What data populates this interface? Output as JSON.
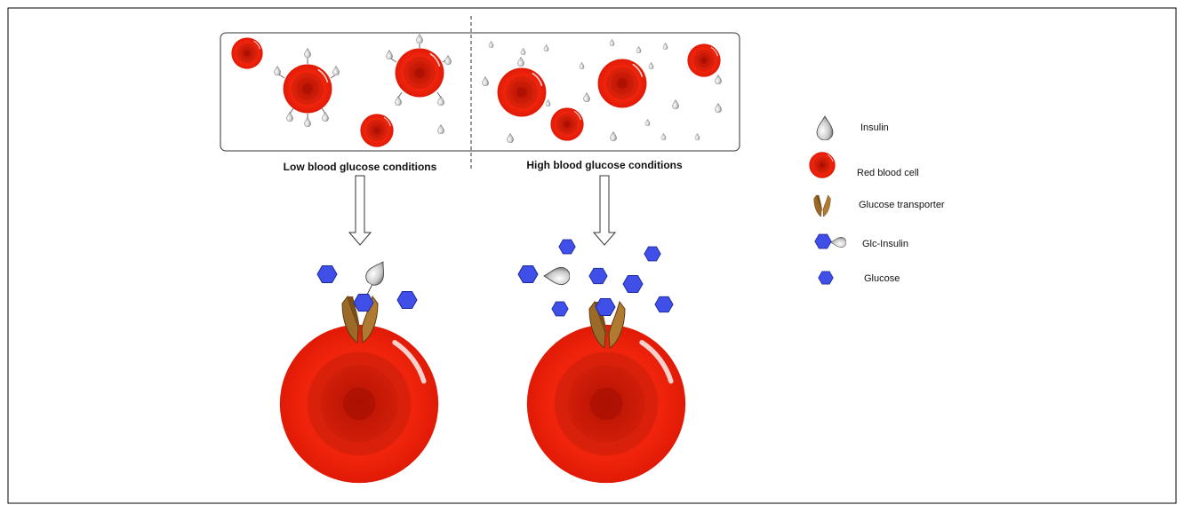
{
  "panels": [
    {
      "label": "Low blood glucose conditions"
    },
    {
      "label": "High blood glucose conditions"
    }
  ],
  "legend": [
    {
      "label": "Insulin"
    },
    {
      "label": "Red blood cell"
    },
    {
      "label": "Glucose transporter"
    },
    {
      "label": "Glc-Insulin"
    },
    {
      "label": "Glucose"
    }
  ]
}
